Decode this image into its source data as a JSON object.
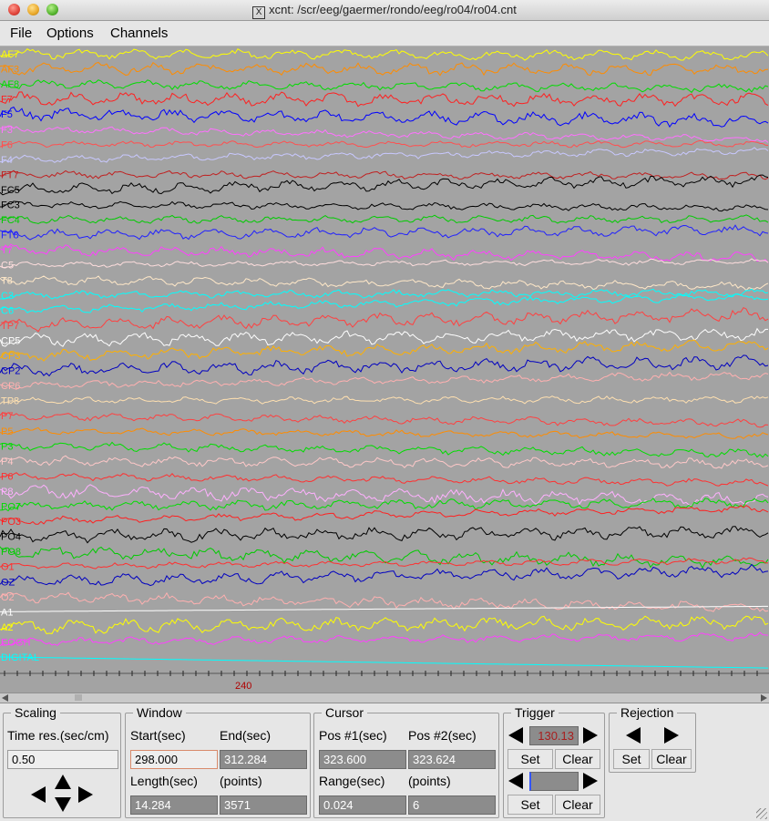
{
  "window": {
    "title": "xcnt: /scr/eeg/gaermer/rondo/eeg/ro04/ro04.cnt",
    "icon": "x11-icon"
  },
  "menu": [
    {
      "label": "File"
    },
    {
      "label": "Options"
    },
    {
      "label": "Channels"
    }
  ],
  "channels": [
    {
      "name": "AF7",
      "color": "#ffff00"
    },
    {
      "name": "AF3",
      "color": "#ff8c00"
    },
    {
      "name": "AF8",
      "color": "#00dd00"
    },
    {
      "name": "F7",
      "color": "#ff2020"
    },
    {
      "name": "F5",
      "color": "#0000ff"
    },
    {
      "name": "F3",
      "color": "#ff70ff"
    },
    {
      "name": "F6",
      "color": "#ff5050"
    },
    {
      "name": "F4",
      "color": "#c8c8ff"
    },
    {
      "name": "FT7",
      "color": "#c02020"
    },
    {
      "name": "FC5",
      "color": "#000000"
    },
    {
      "name": "FC3",
      "color": "#000000"
    },
    {
      "name": "FC4",
      "color": "#00cc00"
    },
    {
      "name": "FT8",
      "color": "#2020ff"
    },
    {
      "name": "T7",
      "color": "#ff40ff"
    },
    {
      "name": "C5",
      "color": "#ffdede"
    },
    {
      "name": "T8",
      "color": "#ffe8c8"
    },
    {
      "name": "C3",
      "color": "#00ffff"
    },
    {
      "name": "C6",
      "color": "#00ffff"
    },
    {
      "name": "TP7",
      "color": "#ff4040"
    },
    {
      "name": "CP5",
      "color": "#ffffff"
    },
    {
      "name": "CP3",
      "color": "#ffb000"
    },
    {
      "name": "CP2",
      "color": "#0000c0"
    },
    {
      "name": "CP6",
      "color": "#ffb0b0"
    },
    {
      "name": "TP8",
      "color": "#ffe0b0"
    },
    {
      "name": "P7",
      "color": "#ff4040"
    },
    {
      "name": "P5",
      "color": "#ff8c00"
    },
    {
      "name": "P3",
      "color": "#00dd00"
    },
    {
      "name": "P4",
      "color": "#ffc8c8"
    },
    {
      "name": "P6",
      "color": "#ff3030"
    },
    {
      "name": "P8",
      "color": "#ffb0ff"
    },
    {
      "name": "PO7",
      "color": "#00dd00"
    },
    {
      "name": "PO3",
      "color": "#ff2020"
    },
    {
      "name": "PO4",
      "color": "#000000"
    },
    {
      "name": "PO8",
      "color": "#00cc00"
    },
    {
      "name": "O1",
      "color": "#ff3030"
    },
    {
      "name": "OZ",
      "color": "#0000c0"
    },
    {
      "name": "O2",
      "color": "#ffb0b0"
    },
    {
      "name": "A1",
      "color": "#ffffff"
    },
    {
      "name": "A2",
      "color": "#ffff00"
    },
    {
      "name": "EOGH",
      "color": "#ff40ff"
    },
    {
      "name": "DIGITAL",
      "color": "#00ffff"
    }
  ],
  "time_axis": {
    "tick_label": "240"
  },
  "scaling": {
    "title": "Scaling",
    "time_res_label": "Time res.(sec/cm)",
    "time_res_value": "0.50"
  },
  "window_group": {
    "title": "Window",
    "start_label": "Start(sec)",
    "end_label": "End(sec)",
    "start_value": "298.000",
    "end_value": "312.284",
    "length_label": "Length(sec)",
    "points_label": "(points)",
    "length_value": "14.284",
    "points_value": "3571"
  },
  "cursor": {
    "title": "Cursor",
    "pos1_label": "Pos #1(sec)",
    "pos2_label": "Pos #2(sec)",
    "pos1_value": "323.600",
    "pos2_value": "323.624",
    "range_label": "Range(sec)",
    "points_label": "(points)",
    "range_value": "0.024",
    "points_value": "6"
  },
  "trigger": {
    "title": "Trigger",
    "value": "130.13",
    "set_label": "Set",
    "clear_label": "Clear",
    "value2": "",
    "set2_label": "Set",
    "clear2_label": "Clear"
  },
  "rejection": {
    "title": "Rejection",
    "set_label": "Set",
    "clear_label": "Clear"
  }
}
